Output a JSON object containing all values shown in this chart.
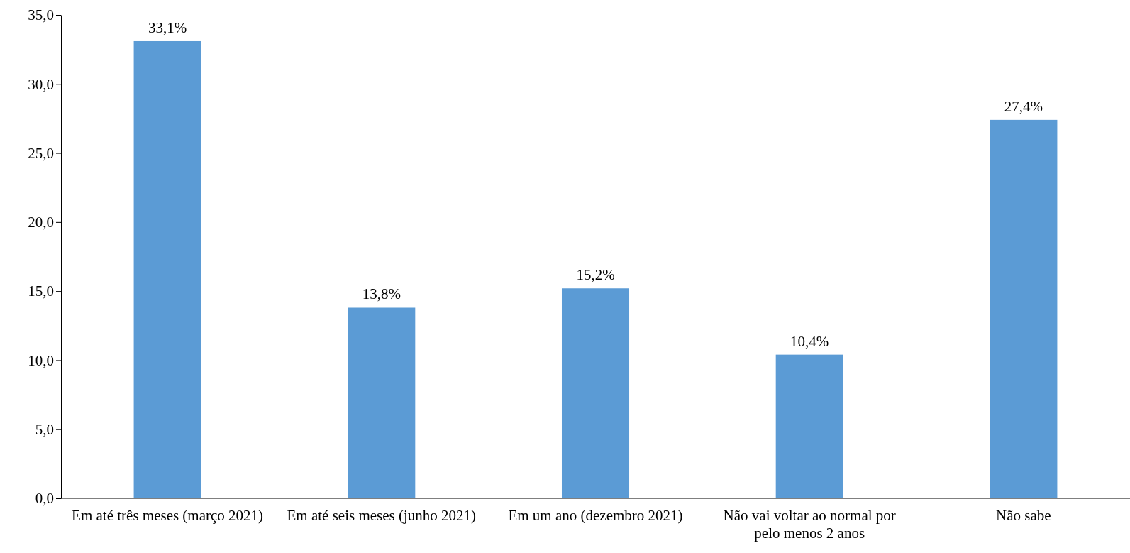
{
  "chart_data": {
    "type": "bar",
    "categories": [
      "Em até três meses (março 2021)",
      "Em até seis meses (junho 2021)",
      "Em um ano (dezembro 2021)",
      "Não vai voltar ao normal por pelo menos 2 anos",
      "Não sabe"
    ],
    "values": [
      33.1,
      13.8,
      15.2,
      10.4,
      27.4
    ],
    "value_labels": [
      "33,1%",
      "13,8%",
      "15,2%",
      "10,4%",
      "27,4%"
    ],
    "color": "#5b9bd5",
    "ylim": [
      0,
      35
    ],
    "yticks": [
      {
        "value": 0,
        "label": "0,0"
      },
      {
        "value": 5,
        "label": "5,0"
      },
      {
        "value": 10,
        "label": "10,0"
      },
      {
        "value": 15,
        "label": "15,0"
      },
      {
        "value": 20,
        "label": "20,0"
      },
      {
        "value": 25,
        "label": "25,0"
      },
      {
        "value": 30,
        "label": "30,0"
      },
      {
        "value": 35,
        "label": "35,0"
      }
    ],
    "grid": false
  }
}
